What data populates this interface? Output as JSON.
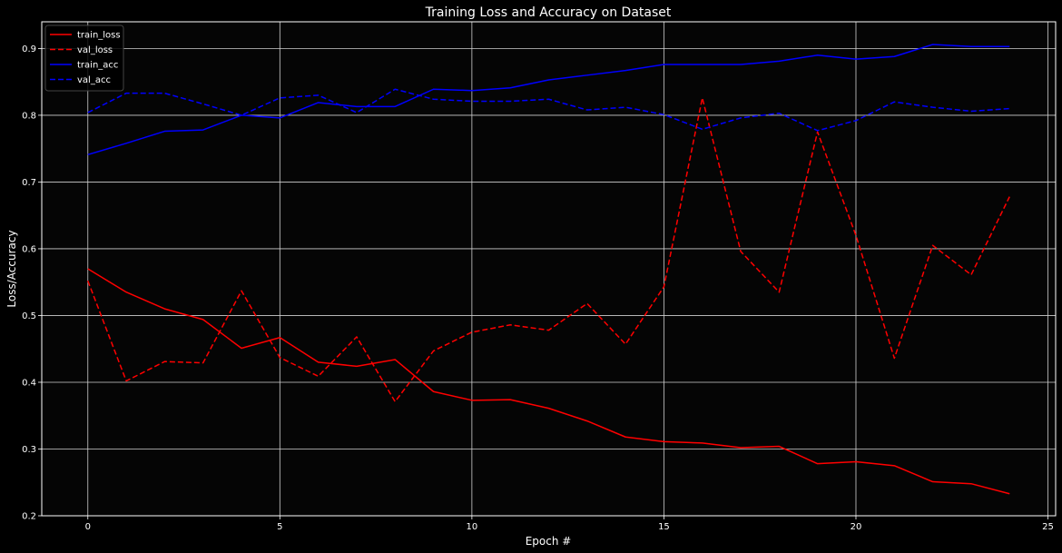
{
  "chart_data": {
    "type": "line",
    "title": "Training Loss and Accuracy on Dataset",
    "xlabel": "Epoch #",
    "ylabel": "Loss/Accuracy",
    "xlim": [
      -1.2,
      25.2
    ],
    "ylim": [
      0.2,
      0.94
    ],
    "xticks": [
      0,
      5,
      10,
      15,
      20,
      25
    ],
    "yticks": [
      0.2,
      0.3,
      0.4,
      0.5,
      0.6,
      0.7,
      0.8,
      0.9
    ],
    "grid": true,
    "legend_position": "top-left",
    "background": "#000000",
    "grid_color": "#d0d0d0",
    "x": [
      0,
      1,
      2,
      3,
      4,
      5,
      6,
      7,
      8,
      9,
      10,
      11,
      12,
      13,
      14,
      15,
      16,
      17,
      18,
      19,
      20,
      21,
      22,
      23,
      24
    ],
    "series": [
      {
        "name": "train_loss",
        "color": "#ff0000",
        "dash": "solid",
        "values": [
          0.57,
          0.535,
          0.51,
          0.494,
          0.451,
          0.467,
          0.43,
          0.424,
          0.434,
          0.386,
          0.373,
          0.374,
          0.361,
          0.342,
          0.318,
          0.311,
          0.309,
          0.302,
          0.304,
          0.278,
          0.281,
          0.275,
          0.251,
          0.248,
          0.233
        ]
      },
      {
        "name": "val_loss",
        "color": "#ff0000",
        "dash": "dashed",
        "values": [
          0.552,
          0.402,
          0.431,
          0.429,
          0.537,
          0.437,
          0.409,
          0.468,
          0.371,
          0.447,
          0.475,
          0.486,
          0.478,
          0.518,
          0.457,
          0.543,
          0.826,
          0.596,
          0.535,
          0.775,
          0.62,
          0.436,
          0.605,
          0.561,
          0.678
        ]
      },
      {
        "name": "train_acc",
        "color": "#0000ff",
        "dash": "solid",
        "values": [
          0.741,
          0.758,
          0.776,
          0.778,
          0.8,
          0.796,
          0.819,
          0.813,
          0.813,
          0.839,
          0.837,
          0.841,
          0.853,
          0.86,
          0.867,
          0.876,
          0.876,
          0.876,
          0.881,
          0.89,
          0.884,
          0.888,
          0.906,
          0.903,
          0.903
        ]
      },
      {
        "name": "val_acc",
        "color": "#0000ff",
        "dash": "dashed",
        "values": [
          0.804,
          0.833,
          0.833,
          0.817,
          0.8,
          0.826,
          0.83,
          0.804,
          0.839,
          0.824,
          0.821,
          0.821,
          0.824,
          0.808,
          0.812,
          0.801,
          0.779,
          0.796,
          0.803,
          0.777,
          0.792,
          0.82,
          0.812,
          0.806,
          0.81
        ]
      }
    ]
  }
}
